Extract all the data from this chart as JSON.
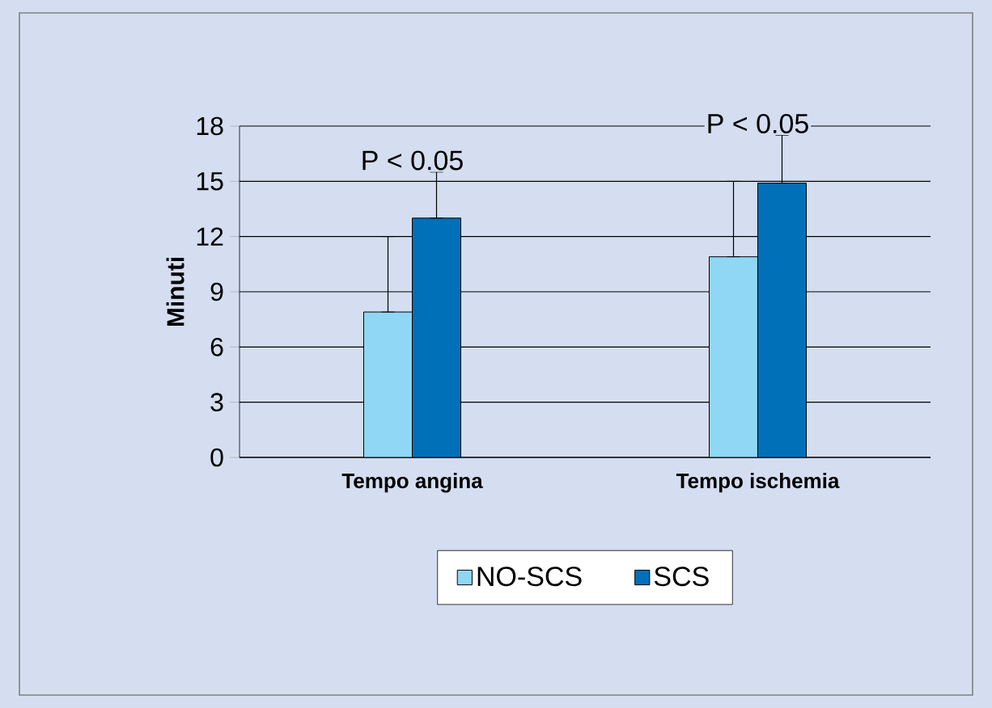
{
  "chart_data": {
    "type": "bar",
    "ylabel": "Minuti",
    "categories": [
      "Tempo angina",
      "Tempo ischemia"
    ],
    "series": [
      {
        "name": "NO-SCS",
        "color": "#8fd7f5",
        "values": [
          7.9,
          10.9
        ],
        "errors": [
          [
            7.9,
            12.0
          ],
          [
            10.9,
            15.0
          ]
        ]
      },
      {
        "name": "SCS",
        "color": "#0070b8",
        "values": [
          13.0,
          14.9
        ],
        "errors": [
          [
            13.0,
            15.5
          ],
          [
            14.9,
            17.5
          ]
        ]
      }
    ],
    "annotations": [
      "P < 0.05",
      "P < 0.05"
    ],
    "ylim": [
      0,
      18
    ],
    "yticks": [
      0,
      3,
      6,
      9,
      12,
      15,
      18
    ],
    "grid": "y",
    "legend": "bottom"
  }
}
